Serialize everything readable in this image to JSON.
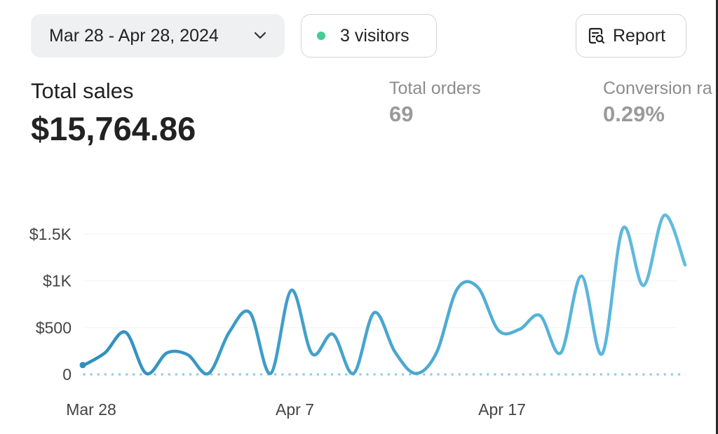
{
  "toolbar": {
    "date_range": "Mar 28 - Apr 28, 2024",
    "visitors": "3 visitors",
    "report": "Report"
  },
  "metrics": {
    "total_sales_label": "Total sales",
    "total_sales_value": "$15,764.86",
    "total_orders_label": "Total orders",
    "total_orders_value": "69",
    "conversion_label": "Conversion ra",
    "conversion_value": "0.29%"
  },
  "colors": {
    "line": "#3a9cc6",
    "baseline": "#8fd0e8",
    "status_dot": "#3fcf8e"
  },
  "icons": [
    "chevron-down-icon",
    "status-dot-icon",
    "report-search-icon"
  ],
  "chart_data": {
    "type": "line",
    "x_tick_labels": [
      "Mar 28",
      "Apr 7",
      "Apr 17"
    ],
    "y_tick_labels": [
      "0",
      "$500",
      "$1K",
      "$1.5K"
    ],
    "y_ticks": [
      0,
      500,
      1000,
      1500
    ],
    "ylim": [
      0,
      1700
    ],
    "grid": true,
    "series": [
      {
        "values": [
          100,
          230,
          450,
          10,
          230,
          210,
          10,
          450,
          660,
          10,
          900,
          220,
          430,
          10,
          660,
          240,
          10,
          230,
          910,
          930,
          470,
          480,
          630,
          230,
          1050,
          220,
          1560,
          950,
          1700,
          1170
        ]
      }
    ],
    "baseline": {
      "values": [
        0,
        0,
        0,
        0,
        0,
        0,
        0,
        0,
        0,
        0,
        0,
        0,
        0,
        0,
        0,
        0,
        0,
        0,
        0,
        0,
        0,
        0,
        0,
        0,
        0,
        0,
        0,
        0,
        0,
        0
      ]
    }
  }
}
